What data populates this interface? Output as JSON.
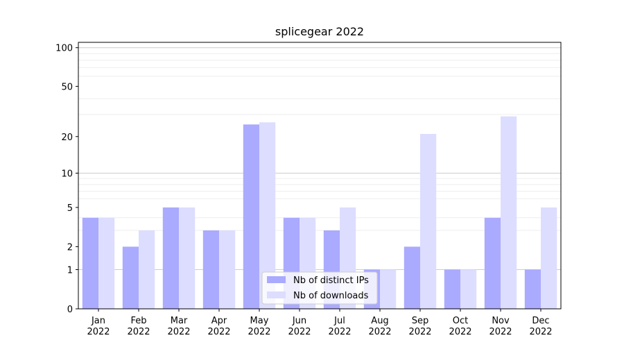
{
  "chart_data": {
    "type": "bar",
    "title": "splicegear 2022",
    "xlabel": "",
    "ylabel": "",
    "yscale": "symlog",
    "ylim": [
      0,
      110
    ],
    "yticks": [
      0,
      1,
      2,
      5,
      10,
      20,
      50,
      100
    ],
    "categories": [
      [
        "Jan",
        "2022"
      ],
      [
        "Feb",
        "2022"
      ],
      [
        "Mar",
        "2022"
      ],
      [
        "Apr",
        "2022"
      ],
      [
        "May",
        "2022"
      ],
      [
        "Jun",
        "2022"
      ],
      [
        "Jul",
        "2022"
      ],
      [
        "Aug",
        "2022"
      ],
      [
        "Sep",
        "2022"
      ],
      [
        "Oct",
        "2022"
      ],
      [
        "Nov",
        "2022"
      ],
      [
        "Dec",
        "2022"
      ]
    ],
    "series": [
      {
        "name": "Nb of distinct IPs",
        "color": "#aaaaff",
        "values": [
          4,
          2,
          5,
          3,
          25,
          4,
          3,
          1,
          2,
          1,
          4,
          1
        ]
      },
      {
        "name": "Nb of downloads",
        "color": "#ddddff",
        "values": [
          4,
          3,
          5,
          3,
          26,
          4,
          5,
          1,
          21,
          1,
          29,
          5
        ]
      }
    ],
    "grid": {
      "major": "#cccccc",
      "minor": "#eeeeee"
    },
    "legend_position": "bottom-center"
  }
}
